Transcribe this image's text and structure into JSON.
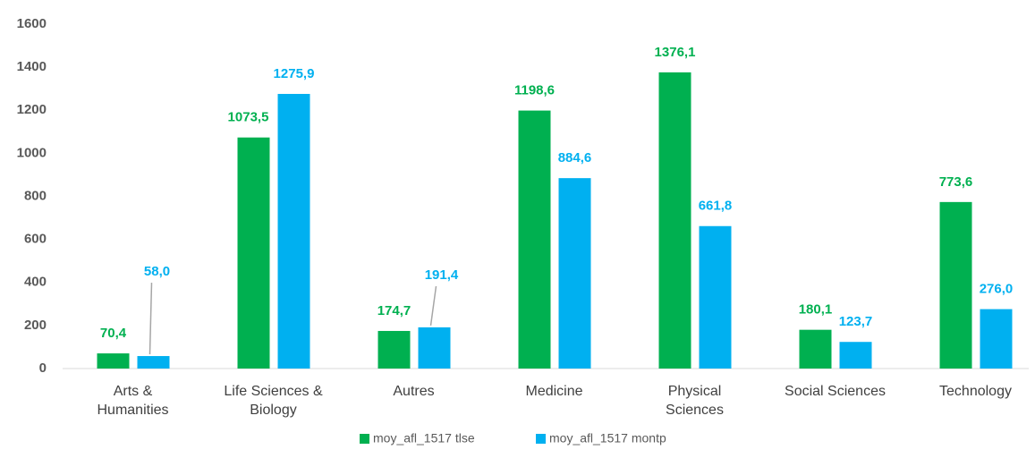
{
  "chart_data": {
    "type": "bar",
    "categories": [
      "Arts &\nHumanities",
      "Life Sciences &\nBiology",
      "Autres",
      "Medicine",
      "Physical\nSciences",
      "Social Sciences",
      "Technology"
    ],
    "series": [
      {
        "name": "moy_afl_1517 tlse",
        "color": "#00b050",
        "values": [
          70.4,
          1073.5,
          174.7,
          1198.6,
          1376.1,
          180.1,
          773.6
        ],
        "value_labels": [
          "70,4",
          "1073,5",
          "174,7",
          "1198,6",
          "1376,1",
          "180,1",
          "773,6"
        ]
      },
      {
        "name": "moy_afl_1517 montp",
        "color": "#00b0f0",
        "values": [
          58.0,
          1275.9,
          191.4,
          884.6,
          661.8,
          123.7,
          276.0
        ],
        "value_labels": [
          "58,0",
          "1275,9",
          "191,4",
          "884,6",
          "661,8",
          "123,7",
          "276,0"
        ]
      }
    ],
    "ylim": [
      0,
      1600
    ],
    "yticks": [
      0,
      200,
      400,
      600,
      800,
      1000,
      1200,
      1400,
      1600
    ],
    "grid": false,
    "legend": "bottom"
  }
}
